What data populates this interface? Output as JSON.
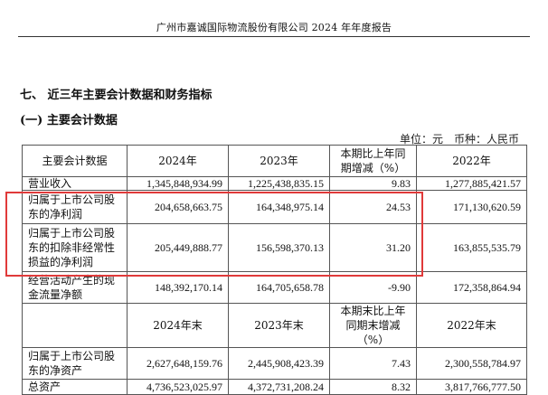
{
  "header": "广州市嘉诚国际物流股份有限公司 2024 年年度报告",
  "section_title": "七、 近三年主要会计数据和财务指标",
  "subsection_title": "(一) 主要会计数据",
  "unit_label": "单位：元　币种：人民币",
  "colors": {
    "highlight": "#e03a3a",
    "border": "#555555"
  },
  "table1": {
    "headers": [
      "主要会计数据",
      "2024年",
      "2023年",
      "本期比上年同期增减（%）",
      "2022年"
    ],
    "rows": [
      [
        "营业收入",
        "1,345,848,934.99",
        "1,225,438,835.15",
        "9.83",
        "1,277,885,421.57"
      ],
      [
        "归属于上市公司股东的净利润",
        "204,658,663.75",
        "164,348,975.14",
        "24.53",
        "171,130,620.59"
      ],
      [
        "归属于上市公司股东的扣除非经常性损益的净利润",
        "205,449,888.77",
        "156,598,370.13",
        "31.20",
        "163,855,535.79"
      ],
      [
        "经营活动产生的现金流量净额",
        "148,392,170.14",
        "164,705,658.78",
        "-9.90",
        "172,358,864.94"
      ]
    ]
  },
  "table2": {
    "headers": [
      "",
      "2024年末",
      "2023年末",
      "本期末比上年同期末增减（%）",
      "2022年末"
    ],
    "rows": [
      [
        "归属于上市公司股东的净资产",
        "2,627,648,159.76",
        "2,445,908,423.39",
        "7.43",
        "2,300,558,784.97"
      ],
      [
        "总资产",
        "4,736,523,025.97",
        "4,372,731,208.24",
        "8.32",
        "3,817,766,777.50"
      ]
    ]
  }
}
